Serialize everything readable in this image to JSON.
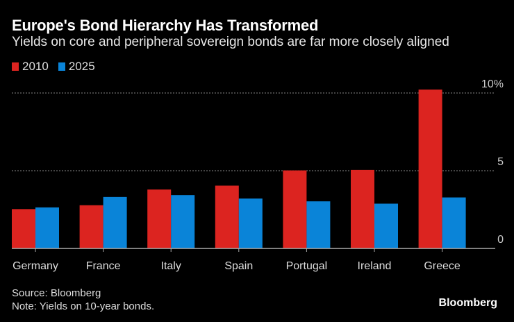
{
  "chart_data": {
    "type": "bar",
    "title": "Europe's Bond Hierarchy Has Transformed",
    "subtitle": "Yields on core and peripheral sovereign bonds are far more closely aligned",
    "categories": [
      "Germany",
      "France",
      "Italy",
      "Spain",
      "Portugal",
      "Ireland",
      "Greece"
    ],
    "series": [
      {
        "name": "2010",
        "color": "#dc2420",
        "values": [
          2.53,
          2.78,
          3.79,
          4.04,
          5.02,
          5.05,
          10.22
        ]
      },
      {
        "name": "2025",
        "color": "#0a84d8",
        "values": [
          2.64,
          3.31,
          3.43,
          3.21,
          3.03,
          2.88,
          3.28
        ]
      }
    ],
    "ylim": [
      0,
      10
    ],
    "yticks": [
      {
        "value": 0,
        "label": "0"
      },
      {
        "value": 5,
        "label": "5"
      },
      {
        "value": 10,
        "label": "10%"
      }
    ],
    "grid": true,
    "legend_position": "top-left",
    "source": "Source: Bloomberg",
    "note": "Note: Yields on 10-year bonds.",
    "logo": "Bloomberg"
  }
}
